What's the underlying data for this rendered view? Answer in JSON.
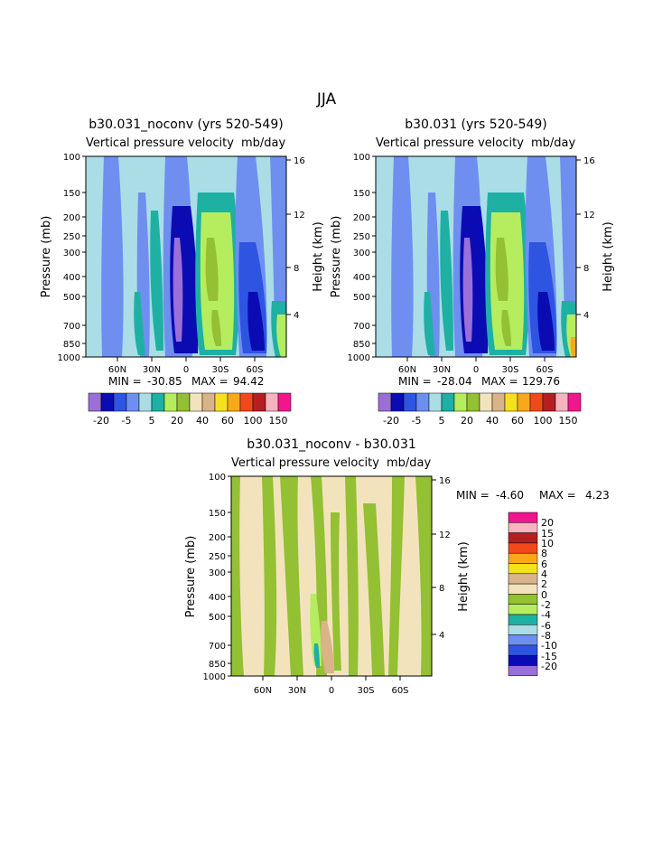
{
  "page_title": "JJA",
  "colors": {
    "purple": "#9a6fd8",
    "navy": "#0b0bb4",
    "blue1": "#2e54e2",
    "blue2": "#6f8ff0",
    "lightblue": "#abdde6",
    "teal": "#1fb0a4",
    "lightgreen": "#b5ed5f",
    "green": "#94c033",
    "cream": "#f3e3bc",
    "tan": "#d9b488",
    "yellow": "#f6e11e",
    "orange": "#f8a81b",
    "orangered": "#f2491b",
    "red": "#b51f22",
    "pink": "#f8b3c1",
    "magenta": "#f1168d"
  },
  "chart_data": [
    {
      "type": "heatmap",
      "title": "b30.031_noconv (yrs 520-549)",
      "subtitle": "Vertical pressure velocity",
      "units": "mb/day",
      "ylabel": "Pressure (mb)",
      "ylabel_right": "Height (km)",
      "pressure_ticks": [
        "100",
        "150",
        "200",
        "250",
        "300",
        "400",
        "500",
        "700",
        "850",
        "1000"
      ],
      "height_ticks": [
        "16",
        "12",
        "8",
        "4"
      ],
      "lat_ticks": [
        "60N",
        "30N",
        "0",
        "30S",
        "60S"
      ],
      "min_label": "MIN =",
      "min_value": "-30.85",
      "max_label": "MAX =",
      "max_value": "94.42",
      "legend_labels": [
        "-20",
        "-5",
        "5",
        "20",
        "40",
        "60",
        "100",
        "150"
      ]
    },
    {
      "type": "heatmap",
      "title": "b30.031 (yrs 520-549)",
      "subtitle": "Vertical pressure velocity",
      "units": "mb/day",
      "ylabel": "Pressure (mb)",
      "ylabel_right": "Height (km)",
      "pressure_ticks": [
        "100",
        "150",
        "200",
        "250",
        "300",
        "400",
        "500",
        "700",
        "850",
        "1000"
      ],
      "height_ticks": [
        "16",
        "12",
        "8",
        "4"
      ],
      "lat_ticks": [
        "60N",
        "30N",
        "0",
        "30S",
        "60S"
      ],
      "min_label": "MIN =",
      "min_value": "-28.04",
      "max_label": "MAX =",
      "max_value": "129.76",
      "legend_labels": [
        "-20",
        "-5",
        "5",
        "20",
        "40",
        "60",
        "100",
        "150"
      ]
    },
    {
      "type": "heatmap",
      "title": "b30.031_noconv - b30.031",
      "subtitle": "Vertical pressure velocity",
      "units": "mb/day",
      "ylabel": "Pressure (mb)",
      "ylabel_right": "Height (km)",
      "pressure_ticks": [
        "100",
        "150",
        "200",
        "250",
        "300",
        "400",
        "500",
        "700",
        "850",
        "1000"
      ],
      "height_ticks": [
        "16",
        "12",
        "8",
        "4"
      ],
      "lat_ticks": [
        "60N",
        "30N",
        "0",
        "30S",
        "60S"
      ],
      "min_label": "MIN =",
      "min_value": "-4.60",
      "max_label": "MAX =",
      "max_value": "4.23",
      "legend_labels": [
        "20",
        "15",
        "10",
        "8",
        "6",
        "4",
        "2",
        "0",
        "-2",
        "-4",
        "-6",
        "-8",
        "-10",
        "-15",
        "-20"
      ]
    }
  ]
}
